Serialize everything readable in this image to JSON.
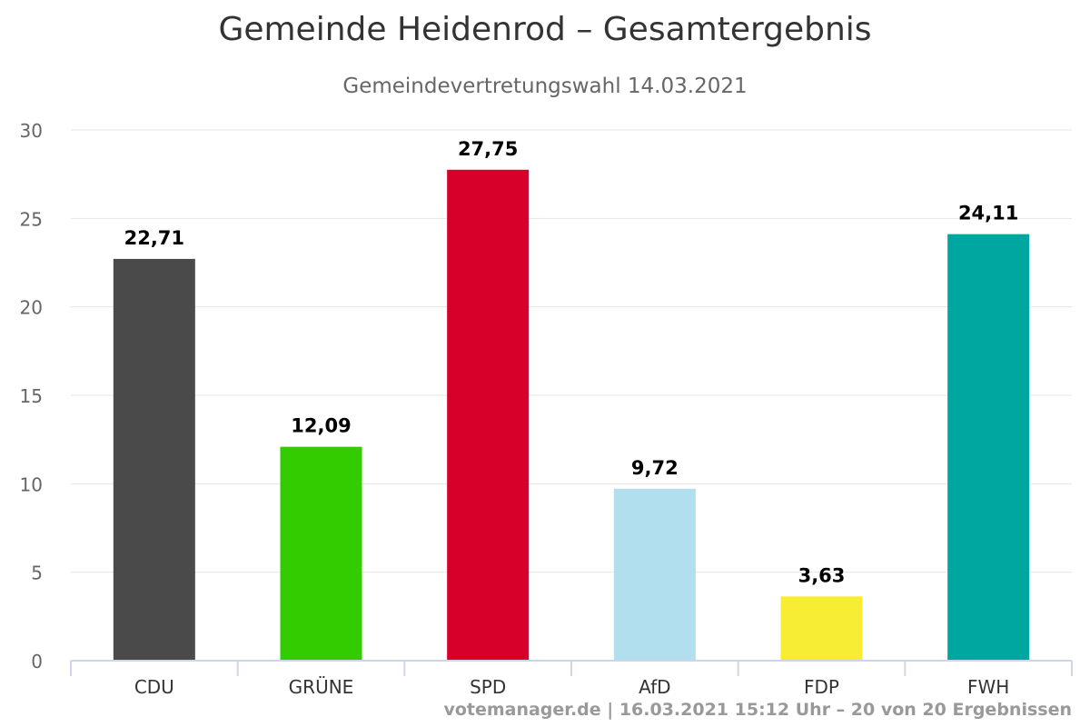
{
  "chart_data": {
    "type": "bar",
    "title": "Gemeinde Heidenrod – Gesamtergebnis",
    "subtitle": "Gemeindevertretungswahl 14.03.2021",
    "categories": [
      "CDU",
      "GRÜNE",
      "SPD",
      "AfD",
      "FDP",
      "FWH"
    ],
    "values": [
      22.71,
      12.09,
      27.75,
      9.72,
      3.63,
      24.11
    ],
    "data_labels": [
      "22,71",
      "12,09",
      "27,75",
      "9,72",
      "3,63",
      "24,11"
    ],
    "colors": [
      "#4a4a4a",
      "#33cc00",
      "#d7002a",
      "#b2dfee",
      "#f7ed33",
      "#00a6a0"
    ],
    "ylim": [
      0,
      30
    ],
    "yticks": [
      0,
      5,
      10,
      15,
      20,
      25,
      30
    ],
    "grid": true,
    "legend": "none"
  },
  "credits": "votemanager.de | 16.03.2021 15:12 Uhr – 20 von 20 Ergebnissen"
}
